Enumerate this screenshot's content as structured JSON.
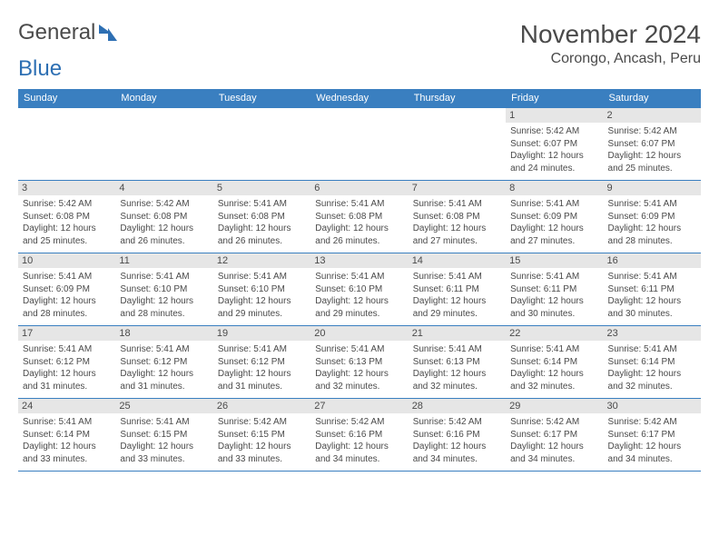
{
  "brand": {
    "part1": "General",
    "part2": "Blue"
  },
  "title": "November 2024",
  "location": "Corongo, Ancash, Peru",
  "style": {
    "header_bg": "#3a7fc0",
    "header_text": "#ffffff",
    "daynum_bg": "#e6e6e6",
    "text_color": "#4a4a4a",
    "border_color": "#3a7fc0",
    "body_fontsize": 10,
    "header_fontsize": 11,
    "title_fontsize": 28,
    "location_fontsize": 16
  },
  "daysOfWeek": [
    "Sunday",
    "Monday",
    "Tuesday",
    "Wednesday",
    "Thursday",
    "Friday",
    "Saturday"
  ],
  "weeks": [
    [
      null,
      null,
      null,
      null,
      null,
      {
        "n": "1",
        "sunrise": "5:42 AM",
        "sunset": "6:07 PM",
        "daylight": "12 hours and 24 minutes."
      },
      {
        "n": "2",
        "sunrise": "5:42 AM",
        "sunset": "6:07 PM",
        "daylight": "12 hours and 25 minutes."
      }
    ],
    [
      {
        "n": "3",
        "sunrise": "5:42 AM",
        "sunset": "6:08 PM",
        "daylight": "12 hours and 25 minutes."
      },
      {
        "n": "4",
        "sunrise": "5:42 AM",
        "sunset": "6:08 PM",
        "daylight": "12 hours and 26 minutes."
      },
      {
        "n": "5",
        "sunrise": "5:41 AM",
        "sunset": "6:08 PM",
        "daylight": "12 hours and 26 minutes."
      },
      {
        "n": "6",
        "sunrise": "5:41 AM",
        "sunset": "6:08 PM",
        "daylight": "12 hours and 26 minutes."
      },
      {
        "n": "7",
        "sunrise": "5:41 AM",
        "sunset": "6:08 PM",
        "daylight": "12 hours and 27 minutes."
      },
      {
        "n": "8",
        "sunrise": "5:41 AM",
        "sunset": "6:09 PM",
        "daylight": "12 hours and 27 minutes."
      },
      {
        "n": "9",
        "sunrise": "5:41 AM",
        "sunset": "6:09 PM",
        "daylight": "12 hours and 28 minutes."
      }
    ],
    [
      {
        "n": "10",
        "sunrise": "5:41 AM",
        "sunset": "6:09 PM",
        "daylight": "12 hours and 28 minutes."
      },
      {
        "n": "11",
        "sunrise": "5:41 AM",
        "sunset": "6:10 PM",
        "daylight": "12 hours and 28 minutes."
      },
      {
        "n": "12",
        "sunrise": "5:41 AM",
        "sunset": "6:10 PM",
        "daylight": "12 hours and 29 minutes."
      },
      {
        "n": "13",
        "sunrise": "5:41 AM",
        "sunset": "6:10 PM",
        "daylight": "12 hours and 29 minutes."
      },
      {
        "n": "14",
        "sunrise": "5:41 AM",
        "sunset": "6:11 PM",
        "daylight": "12 hours and 29 minutes."
      },
      {
        "n": "15",
        "sunrise": "5:41 AM",
        "sunset": "6:11 PM",
        "daylight": "12 hours and 30 minutes."
      },
      {
        "n": "16",
        "sunrise": "5:41 AM",
        "sunset": "6:11 PM",
        "daylight": "12 hours and 30 minutes."
      }
    ],
    [
      {
        "n": "17",
        "sunrise": "5:41 AM",
        "sunset": "6:12 PM",
        "daylight": "12 hours and 31 minutes."
      },
      {
        "n": "18",
        "sunrise": "5:41 AM",
        "sunset": "6:12 PM",
        "daylight": "12 hours and 31 minutes."
      },
      {
        "n": "19",
        "sunrise": "5:41 AM",
        "sunset": "6:12 PM",
        "daylight": "12 hours and 31 minutes."
      },
      {
        "n": "20",
        "sunrise": "5:41 AM",
        "sunset": "6:13 PM",
        "daylight": "12 hours and 32 minutes."
      },
      {
        "n": "21",
        "sunrise": "5:41 AM",
        "sunset": "6:13 PM",
        "daylight": "12 hours and 32 minutes."
      },
      {
        "n": "22",
        "sunrise": "5:41 AM",
        "sunset": "6:14 PM",
        "daylight": "12 hours and 32 minutes."
      },
      {
        "n": "23",
        "sunrise": "5:41 AM",
        "sunset": "6:14 PM",
        "daylight": "12 hours and 32 minutes."
      }
    ],
    [
      {
        "n": "24",
        "sunrise": "5:41 AM",
        "sunset": "6:14 PM",
        "daylight": "12 hours and 33 minutes."
      },
      {
        "n": "25",
        "sunrise": "5:41 AM",
        "sunset": "6:15 PM",
        "daylight": "12 hours and 33 minutes."
      },
      {
        "n": "26",
        "sunrise": "5:42 AM",
        "sunset": "6:15 PM",
        "daylight": "12 hours and 33 minutes."
      },
      {
        "n": "27",
        "sunrise": "5:42 AM",
        "sunset": "6:16 PM",
        "daylight": "12 hours and 34 minutes."
      },
      {
        "n": "28",
        "sunrise": "5:42 AM",
        "sunset": "6:16 PM",
        "daylight": "12 hours and 34 minutes."
      },
      {
        "n": "29",
        "sunrise": "5:42 AM",
        "sunset": "6:17 PM",
        "daylight": "12 hours and 34 minutes."
      },
      {
        "n": "30",
        "sunrise": "5:42 AM",
        "sunset": "6:17 PM",
        "daylight": "12 hours and 34 minutes."
      }
    ]
  ],
  "labels": {
    "sunrise": "Sunrise:",
    "sunset": "Sunset:",
    "daylight": "Daylight:"
  }
}
